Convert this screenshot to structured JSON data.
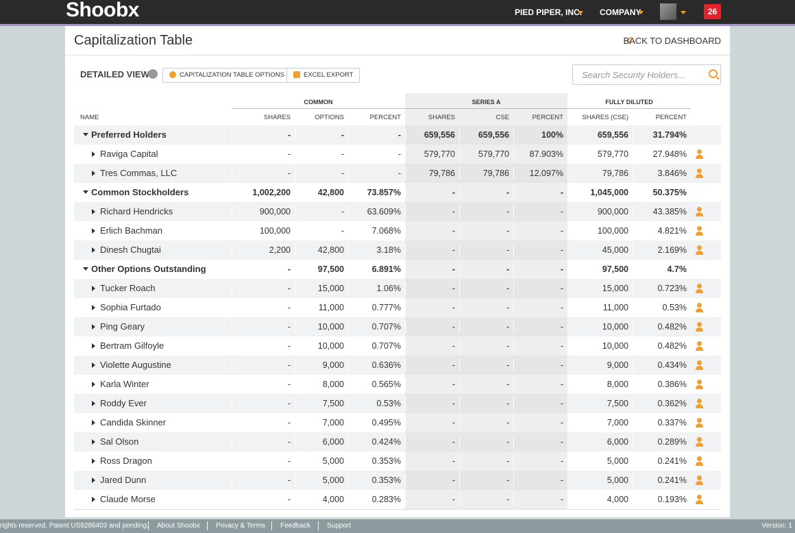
{
  "header": {
    "logo": "Shoobx",
    "company": "PIED PIPER, INC.",
    "menu": "COMPANY",
    "notifications": "26"
  },
  "page": {
    "title": "Capitalization Table",
    "back_link": "BACK TO DASHBOARD"
  },
  "toolbar": {
    "view": "DETAILED VIEW",
    "options_button": "CAPITALIZATION TABLE OPTIONS",
    "export_button": "EXCEL EXPORT",
    "search_placeholder": "Search Security Holders..."
  },
  "table": {
    "column_groups": [
      "COMMON",
      "SERIES A",
      "FULLY DILUTED"
    ],
    "columns": [
      "NAME",
      "SHARES",
      "OPTIONS",
      "PERCENT",
      "SHARES",
      "CSE",
      "PERCENT",
      "SHARES (CSE)",
      "PERCENT"
    ],
    "groups": [
      {
        "name": "Preferred Holders",
        "cells": [
          "-",
          "-",
          "-",
          "659,556",
          "659,556",
          "100%",
          "659,556",
          "31.794%"
        ],
        "holders": [
          {
            "name": "Raviga Capital",
            "cells": [
              "-",
              "-",
              "-",
              "579,770",
              "579,770",
              "87.903%",
              "579,770",
              "27.948%"
            ]
          },
          {
            "name": "Tres Commas, LLC",
            "cells": [
              "-",
              "-",
              "-",
              "79,786",
              "79,786",
              "12.097%",
              "79,786",
              "3.846%"
            ]
          }
        ]
      },
      {
        "name": "Common Stockholders",
        "cells": [
          "1,002,200",
          "42,800",
          "73.857%",
          "-",
          "-",
          "-",
          "1,045,000",
          "50.375%"
        ],
        "holders": [
          {
            "name": "Richard Hendricks",
            "cells": [
              "900,000",
              "-",
              "63.609%",
              "-",
              "-",
              "-",
              "900,000",
              "43.385%"
            ]
          },
          {
            "name": "Erlich Bachman",
            "cells": [
              "100,000",
              "-",
              "7.068%",
              "-",
              "-",
              "-",
              "100,000",
              "4.821%"
            ]
          },
          {
            "name": "Dinesh Chugtai",
            "cells": [
              "2,200",
              "42,800",
              "3.18%",
              "-",
              "-",
              "-",
              "45,000",
              "2.169%"
            ]
          }
        ]
      },
      {
        "name": "Other Options Outstanding",
        "cells": [
          "-",
          "97,500",
          "6.891%",
          "-",
          "-",
          "-",
          "97,500",
          "4.7%"
        ],
        "holders": [
          {
            "name": "Tucker Roach",
            "cells": [
              "-",
              "15,000",
              "1.06%",
              "-",
              "-",
              "-",
              "15,000",
              "0.723%"
            ]
          },
          {
            "name": "Sophia Furtado",
            "cells": [
              "-",
              "11,000",
              "0.777%",
              "-",
              "-",
              "-",
              "11,000",
              "0.53%"
            ]
          },
          {
            "name": "Ping Geary",
            "cells": [
              "-",
              "10,000",
              "0.707%",
              "-",
              "-",
              "-",
              "10,000",
              "0.482%"
            ]
          },
          {
            "name": "Bertram Gilfoyle",
            "cells": [
              "-",
              "10,000",
              "0.707%",
              "-",
              "-",
              "-",
              "10,000",
              "0.482%"
            ]
          },
          {
            "name": "Violette Augustine",
            "cells": [
              "-",
              "9,000",
              "0.636%",
              "-",
              "-",
              "-",
              "9,000",
              "0.434%"
            ]
          },
          {
            "name": "Karla Winter",
            "cells": [
              "-",
              "8,000",
              "0.565%",
              "-",
              "-",
              "-",
              "8,000",
              "0.386%"
            ]
          },
          {
            "name": "Roddy Ever",
            "cells": [
              "-",
              "7,500",
              "0.53%",
              "-",
              "-",
              "-",
              "7,500",
              "0.362%"
            ]
          },
          {
            "name": "Candida Skinner",
            "cells": [
              "-",
              "7,000",
              "0.495%",
              "-",
              "-",
              "-",
              "7,000",
              "0.337%"
            ]
          },
          {
            "name": "Sal Olson",
            "cells": [
              "-",
              "6,000",
              "0.424%",
              "-",
              "-",
              "-",
              "6,000",
              "0.289%"
            ]
          },
          {
            "name": "Ross Dragon",
            "cells": [
              "-",
              "5,000",
              "0.353%",
              "-",
              "-",
              "-",
              "5,000",
              "0.241%"
            ]
          },
          {
            "name": "Jared Dunn",
            "cells": [
              "-",
              "5,000",
              "0.353%",
              "-",
              "-",
              "-",
              "5,000",
              "0.241%"
            ]
          },
          {
            "name": "Claude Morse",
            "cells": [
              "-",
              "4,000",
              "0.283%",
              "-",
              "-",
              "-",
              "4,000",
              "0.193%"
            ]
          }
        ]
      }
    ]
  },
  "footer": {
    "copyright": "rights reserved. Patent US9286403 and pending.",
    "links": [
      "About Shoobx",
      "Privacy & Terms",
      "Feedback",
      "Support"
    ],
    "version": "Version: 1"
  }
}
